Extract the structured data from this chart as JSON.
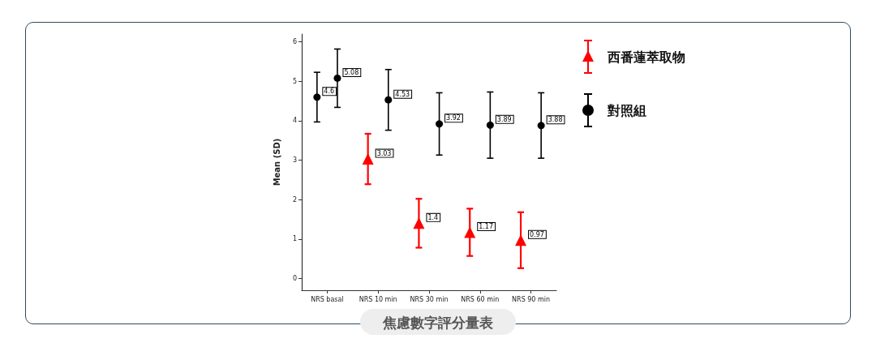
{
  "chart_data": {
    "type": "scatter",
    "title": "焦慮數字評分量表",
    "ylabel": "Mean (SD)",
    "categories": [
      "NRS basal",
      "NRS 10 min",
      "NRS 30 min",
      "NRS 60 min",
      "NRS 90 min"
    ],
    "series": [
      {
        "name": "西番蓮萃取物",
        "color": "#ff0000",
        "marker": "triangle",
        "values": [
          null,
          3.03,
          1.4,
          1.17,
          0.97
        ],
        "errors": [
          null,
          0.64,
          0.62,
          0.6,
          0.71
        ]
      },
      {
        "name": "對照組",
        "color": "#000000",
        "marker": "circle",
        "values": [
          5.08,
          4.53,
          3.92,
          3.89,
          3.88
        ],
        "errors": [
          0.74,
          0.77,
          0.79,
          0.84,
          0.83
        ]
      },
      {
        "color": "#000000",
        "marker": "circle",
        "values": [
          4.6,
          null,
          null,
          null,
          null
        ],
        "errors": [
          0.63,
          null,
          null,
          null,
          null
        ]
      }
    ],
    "ylim": [
      -0.3,
      6.2
    ],
    "yticks": [
      0,
      1,
      2,
      3,
      4,
      5,
      6
    ],
    "data_labels": true,
    "legend": "right"
  }
}
